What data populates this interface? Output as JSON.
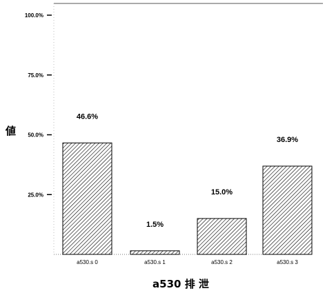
{
  "chart_data": {
    "type": "bar",
    "categories": [
      "a530.s 0",
      "a530.s 1",
      "a530.s 2",
      "a530.s 3"
    ],
    "values": [
      46.6,
      1.5,
      15.0,
      36.9
    ],
    "value_labels": [
      "46.6%",
      "1.5%",
      "15.0%",
      "36.9%"
    ],
    "y_ticks": [
      25,
      50,
      75,
      100
    ],
    "y_tick_labels": [
      "25.0%",
      "50.0%",
      "75.0%",
      "100.0%"
    ],
    "ylim": [
      0,
      100
    ],
    "xlabel": "a530 排 泄",
    "ylabel": "値",
    "bar_fill": "diagonal-hatch",
    "colors": {
      "bar_stroke": "#000000",
      "hatch": "#000000",
      "background": "#ffffff"
    },
    "grid": false,
    "legend": "none"
  }
}
